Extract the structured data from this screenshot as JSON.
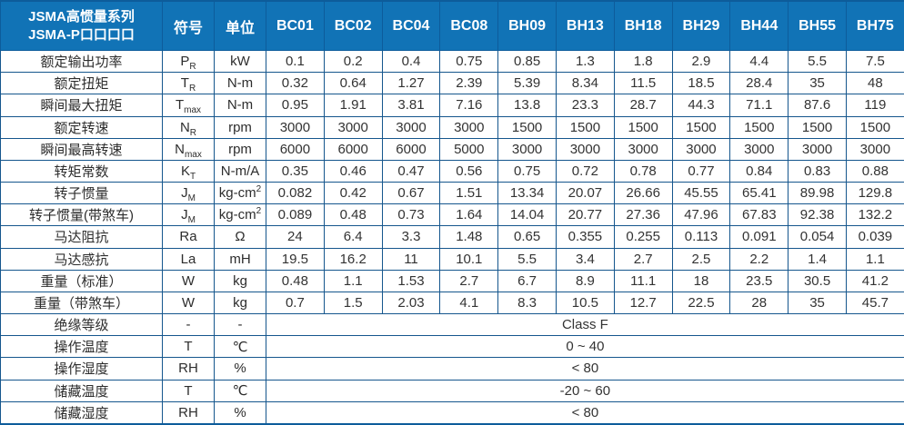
{
  "table": {
    "colors": {
      "header_bg": "#1173b6",
      "header_divider": "#0d5c9b",
      "grid_border": "#15568d",
      "header_text": "#ffffff",
      "body_text": "#333333"
    },
    "header": {
      "title_line1": "JSMA高惯量系列",
      "title_line2": "JSMA-P口口口口",
      "symbol_col": "符号",
      "unit_col": "单位",
      "models": [
        "BC01",
        "BC02",
        "BC04",
        "BC08",
        "BH09",
        "BH13",
        "BH18",
        "BH29",
        "BH44",
        "BH55",
        "BH75"
      ]
    },
    "rows": [
      {
        "label": "额定输出功率",
        "sym": "P",
        "sub": "R",
        "unit": "kW",
        "values": [
          "0.1",
          "0.2",
          "0.4",
          "0.75",
          "0.85",
          "1.3",
          "1.8",
          "2.9",
          "4.4",
          "5.5",
          "7.5"
        ]
      },
      {
        "label": "额定扭矩",
        "sym": "T",
        "sub": "R",
        "unit": "N-m",
        "values": [
          "0.32",
          "0.64",
          "1.27",
          "2.39",
          "5.39",
          "8.34",
          "11.5",
          "18.5",
          "28.4",
          "35",
          "48"
        ]
      },
      {
        "label": "瞬间最大扭矩",
        "sym": "T",
        "sub": "max",
        "unit": "N-m",
        "values": [
          "0.95",
          "1.91",
          "3.81",
          "7.16",
          "13.8",
          "23.3",
          "28.7",
          "44.3",
          "71.1",
          "87.6",
          "119"
        ]
      },
      {
        "label": "额定转速",
        "sym": "N",
        "sub": "R",
        "unit": "rpm",
        "values": [
          "3000",
          "3000",
          "3000",
          "3000",
          "1500",
          "1500",
          "1500",
          "1500",
          "1500",
          "1500",
          "1500"
        ]
      },
      {
        "label": "瞬间最高转速",
        "sym": "N",
        "sub": "max",
        "unit": "rpm",
        "values": [
          "6000",
          "6000",
          "6000",
          "5000",
          "3000",
          "3000",
          "3000",
          "3000",
          "3000",
          "3000",
          "3000"
        ]
      },
      {
        "label": "转矩常数",
        "sym": "K",
        "sub": "T",
        "unit": "N-m/A",
        "values": [
          "0.35",
          "0.46",
          "0.47",
          "0.56",
          "0.75",
          "0.72",
          "0.78",
          "0.77",
          "0.84",
          "0.83",
          "0.88"
        ]
      },
      {
        "label": "转子惯量",
        "sym": "J",
        "sub": "M",
        "unit": "kg-cm",
        "unit_sup": "2",
        "values": [
          "0.082",
          "0.42",
          "0.67",
          "1.51",
          "13.34",
          "20.07",
          "26.66",
          "45.55",
          "65.41",
          "89.98",
          "129.8"
        ]
      },
      {
        "label": "转子惯量(带煞车)",
        "sym": "J",
        "sub": "M",
        "unit": "kg-cm",
        "unit_sup": "2",
        "values": [
          "0.089",
          "0.48",
          "0.73",
          "1.64",
          "14.04",
          "20.77",
          "27.36",
          "47.96",
          "67.83",
          "92.38",
          "132.2"
        ]
      },
      {
        "label": "马达阻抗",
        "sym": "Ra",
        "unit": "Ω",
        "values": [
          "24",
          "6.4",
          "3.3",
          "1.48",
          "0.65",
          "0.355",
          "0.255",
          "0.113",
          "0.091",
          "0.054",
          "0.039"
        ]
      },
      {
        "label": "马达感抗",
        "sym": "La",
        "unit": "mH",
        "values": [
          "19.5",
          "16.2",
          "11",
          "10.1",
          "5.5",
          "3.4",
          "2.7",
          "2.5",
          "2.2",
          "1.4",
          "1.1"
        ]
      },
      {
        "label": "重量（标准）",
        "sym": "W",
        "unit": "kg",
        "values": [
          "0.48",
          "1.1",
          "1.53",
          "2.7",
          "6.7",
          "8.9",
          "11.1",
          "18",
          "23.5",
          "30.5",
          "41.2"
        ]
      },
      {
        "label": "重量（带煞车）",
        "sym": "W",
        "unit": "kg",
        "values": [
          "0.7",
          "1.5",
          "2.03",
          "4.1",
          "8.3",
          "10.5",
          "12.7",
          "22.5",
          "28",
          "35",
          "45.7"
        ]
      },
      {
        "label": "绝缘等级",
        "sym": "-",
        "unit": "-",
        "merged": "Class F"
      },
      {
        "label": "操作温度",
        "sym": "T",
        "unit": "℃",
        "merged": "0 ~ 40"
      },
      {
        "label": "操作湿度",
        "sym": "RH",
        "unit": "%",
        "merged": "< 80"
      },
      {
        "label": "储藏温度",
        "sym": "T",
        "unit": "℃",
        "merged": "-20 ~ 60"
      },
      {
        "label": "储藏湿度",
        "sym": "RH",
        "unit": "%",
        "merged": "< 80"
      }
    ]
  }
}
